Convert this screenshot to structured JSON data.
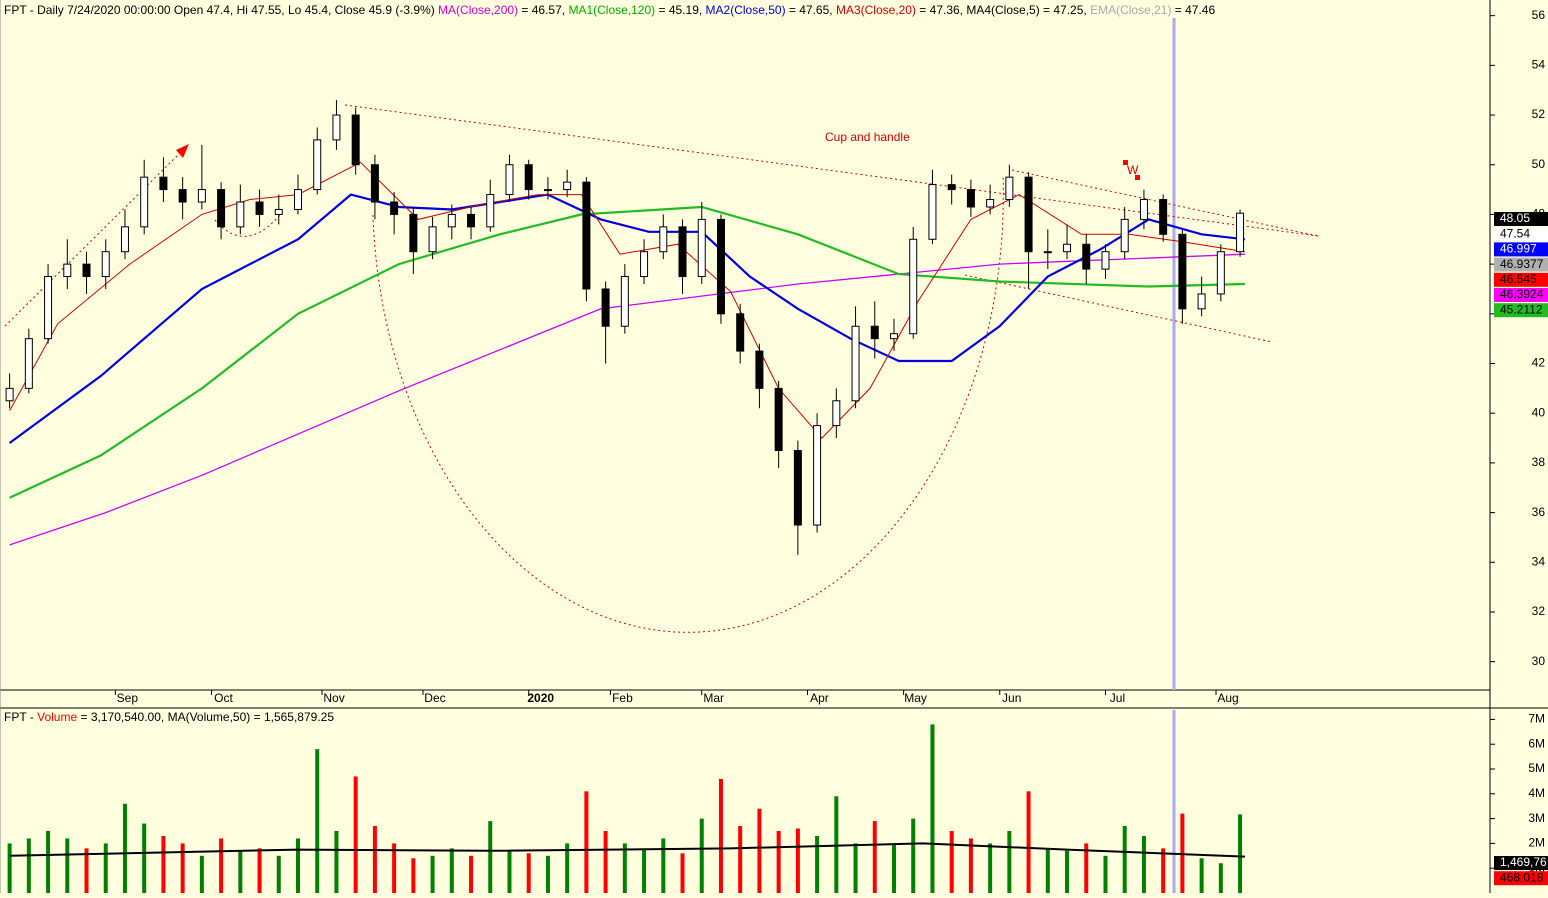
{
  "chart_data": [
    {
      "type": "candlestick",
      "header": [
        {
          "text": "FPT - Daily 7/24/2020 00:00:00 Open 47.4, Hi 47.55, Lo 45.4, Close 45.9 (-3.9%) ",
          "color": "#000000"
        },
        {
          "text": "MA(Close,200)",
          "color": "#cc00cc"
        },
        {
          "text": " = 46.57, ",
          "color": "#000000"
        },
        {
          "text": "MA1(Close,120)",
          "color": "#00aa00"
        },
        {
          "text": " = 45.19, ",
          "color": "#000000"
        },
        {
          "text": "MA2(Close,50)",
          "color": "#0000cc"
        },
        {
          "text": " = 47.65, ",
          "color": "#000000"
        },
        {
          "text": "MA3(Close,20)",
          "color": "#cc0000"
        },
        {
          "text": " = 47.36, ",
          "color": "#000000"
        },
        {
          "text": "MA4(Close,5) = 47.25, ",
          "color": "#000000"
        },
        {
          "text": "EMA(Close,21)",
          "color": "#a8a8a8"
        },
        {
          "text": " = 47.46",
          "color": "#000000"
        }
      ],
      "annotations": [
        {
          "text": "Cup and handle",
          "color": "#cc0000"
        },
        {
          "text": "W",
          "color": "#cc0000"
        }
      ],
      "xlim": [
        -2,
        308
      ],
      "xticks": [
        {
          "value": 22,
          "label": "Sep"
        },
        {
          "value": 42,
          "label": "Oct"
        },
        {
          "value": 65,
          "label": "Nov"
        },
        {
          "value": 86,
          "label": "Dec"
        },
        {
          "value": 108,
          "label": "2020",
          "bold": true
        },
        {
          "value": 125,
          "label": "Feb"
        },
        {
          "value": 144,
          "label": "Mar"
        },
        {
          "value": 166,
          "label": "Apr"
        },
        {
          "value": 186,
          "label": "May"
        },
        {
          "value": 206,
          "label": "Jun"
        },
        {
          "value": 228,
          "label": "Jul"
        },
        {
          "value": 251,
          "label": "Aug"
        }
      ],
      "ylim": [
        28.86,
        56.63
      ],
      "yticks": [
        30,
        32,
        34,
        36,
        38,
        40,
        42,
        44,
        46,
        48,
        50,
        52,
        54,
        56
      ],
      "x": [
        0,
        4,
        8,
        12,
        16,
        20,
        24,
        28,
        32,
        36,
        40,
        44,
        48,
        52,
        56,
        60,
        64,
        68,
        72,
        76,
        80,
        84,
        88,
        92,
        96,
        100,
        104,
        108,
        112,
        116,
        120,
        124,
        128,
        132,
        136,
        140,
        144,
        148,
        152,
        156,
        160,
        164,
        168,
        172,
        176,
        180,
        184,
        188,
        192,
        196,
        200,
        204,
        208,
        212,
        216,
        220,
        224,
        228,
        232,
        236,
        240,
        244,
        248,
        252,
        256
      ],
      "open": [
        40.5,
        41.0,
        43.0,
        45.5,
        46.0,
        45.5,
        46.5,
        47.5,
        49.5,
        49.0,
        48.5,
        49.0,
        47.5,
        48.5,
        48.0,
        48.2,
        49.0,
        51.0,
        52.0,
        50.0,
        48.5,
        48.0,
        46.5,
        47.5,
        48.0,
        47.5,
        48.8,
        50.0,
        49.0,
        49.0,
        49.3,
        45.0,
        43.5,
        45.5,
        46.5,
        47.5,
        45.5,
        47.8,
        44.0,
        42.5,
        41.0,
        38.5,
        35.5,
        39.5,
        40.5,
        43.5,
        43.0,
        43.2,
        47.0,
        49.2,
        49.0,
        48.3,
        48.6,
        49.5,
        46.5,
        46.5,
        46.8,
        45.8,
        46.5,
        47.8,
        48.6,
        47.2,
        44.2,
        44.8,
        46.5
      ],
      "high": [
        41.6,
        43.4,
        46.0,
        47.0,
        46.5,
        47.0,
        48.2,
        50.2,
        50.3,
        49.5,
        50.8,
        49.3,
        49.2,
        49.0,
        48.8,
        49.6,
        51.5,
        52.6,
        52.3,
        50.4,
        48.9,
        48.3,
        47.9,
        48.4,
        48.3,
        49.4,
        50.4,
        50.2,
        49.5,
        49.8,
        49.5,
        45.3,
        46.0,
        47.0,
        48.0,
        47.8,
        48.5,
        48.0,
        44.4,
        42.8,
        41.3,
        38.9,
        40.0,
        41.0,
        44.3,
        44.5,
        43.8,
        47.5,
        49.8,
        49.6,
        49.4,
        49.2,
        50.0,
        49.7,
        47.4,
        47.6,
        47.2,
        46.8,
        48.3,
        49.0,
        48.8,
        47.4,
        45.5,
        46.8,
        48.2
      ],
      "low": [
        40.2,
        40.8,
        42.8,
        45.0,
        44.8,
        45.0,
        46.2,
        47.2,
        48.5,
        47.8,
        48.2,
        47.0,
        47.2,
        47.5,
        47.6,
        48.0,
        48.8,
        50.6,
        49.6,
        47.8,
        47.2,
        45.6,
        46.2,
        47.0,
        47.0,
        47.3,
        48.5,
        48.6,
        48.6,
        48.7,
        44.5,
        42.0,
        43.2,
        45.2,
        46.2,
        44.8,
        45.2,
        43.6,
        42.0,
        40.2,
        37.8,
        34.3,
        35.2,
        39.0,
        40.2,
        42.2,
        42.5,
        43.0,
        46.8,
        48.4,
        47.9,
        48.0,
        48.3,
        45.0,
        45.8,
        46.2,
        45.2,
        45.4,
        46.2,
        47.4,
        46.9,
        43.6,
        43.9,
        44.5,
        46.3
      ],
      "close": [
        41.0,
        43.0,
        45.5,
        46.0,
        45.5,
        46.5,
        47.5,
        49.5,
        49.0,
        48.5,
        49.0,
        47.5,
        48.5,
        48.0,
        48.2,
        49.0,
        51.0,
        52.0,
        50.0,
        48.5,
        48.0,
        46.5,
        47.5,
        48.0,
        47.5,
        48.8,
        50.0,
        49.0,
        49.0,
        49.3,
        45.0,
        43.5,
        45.5,
        46.5,
        47.5,
        45.5,
        47.8,
        44.0,
        42.5,
        41.0,
        38.5,
        35.5,
        39.5,
        40.5,
        43.5,
        43.0,
        43.2,
        47.0,
        49.2,
        49.0,
        48.3,
        48.6,
        49.5,
        46.5,
        46.5,
        46.8,
        45.8,
        46.5,
        47.8,
        48.6,
        47.2,
        44.2,
        44.8,
        46.5,
        48.05
      ],
      "series": [
        {
          "color": "#cc00ff",
          "width": 1.3,
          "x": [
            0,
            20,
            40,
            81,
            123,
            164,
            206,
            257
          ],
          "values": [
            34.7,
            36.0,
            37.5,
            40.9,
            44.2,
            45.2,
            46.0,
            46.4
          ]
        },
        {
          "color": "#22bb22",
          "width": 2.2,
          "x": [
            0,
            19,
            40,
            60,
            81,
            102,
            119,
            144,
            164,
            185,
            206,
            237,
            257
          ],
          "values": [
            36.6,
            38.3,
            41.0,
            44.0,
            46.0,
            47.2,
            48.0,
            48.3,
            47.2,
            45.6,
            45.3,
            45.1,
            45.2
          ]
        },
        {
          "color": "#0000dd",
          "width": 2.2,
          "x": [
            0,
            19,
            40,
            60,
            71,
            81,
            92,
            102,
            112,
            123,
            133,
            144,
            154,
            164,
            175,
            185,
            196,
            206,
            216,
            227,
            237,
            248,
            257
          ],
          "values": [
            38.8,
            41.5,
            45.0,
            47.0,
            48.8,
            48.3,
            48.2,
            48.5,
            48.8,
            47.8,
            47.3,
            47.3,
            45.5,
            44.2,
            43.0,
            42.1,
            42.1,
            43.5,
            45.5,
            46.6,
            47.8,
            47.2,
            47.0
          ]
        },
        {
          "color": "#cc0000",
          "width": 1,
          "x": [
            0,
            10,
            25,
            40,
            50,
            60,
            73,
            85,
            98,
            110,
            119,
            127,
            139,
            150,
            160,
            169,
            179,
            189,
            200,
            210,
            223,
            233,
            244,
            257
          ],
          "values": [
            40.1,
            43.6,
            46.0,
            48.0,
            48.6,
            48.8,
            50.1,
            47.8,
            48.4,
            48.8,
            48.8,
            46.4,
            46.8,
            44.9,
            41.0,
            39.0,
            41.0,
            44.5,
            47.8,
            48.8,
            47.2,
            47.2,
            46.9,
            46.5
          ]
        }
      ],
      "last_values": [
        {
          "value": 48.05,
          "bg": "#000000",
          "fg": "#ffffff"
        },
        {
          "value": 47.54,
          "bg": "#ffffff",
          "fg": "#000000"
        },
        {
          "value": 46.997,
          "bg": "#0000ff",
          "fg": "#ffffff"
        },
        {
          "value": 46.9377,
          "bg": "#b0b0b0",
          "fg": "#000000"
        },
        {
          "value": 46.545,
          "bg": "#ff0000",
          "fg": "#000000"
        },
        {
          "value": 46.3924,
          "bg": "#ff00ff",
          "fg": "#000000"
        },
        {
          "value": 45.2112,
          "bg": "#22bb22",
          "fg": "#000000"
        }
      ]
    },
    {
      "type": "bar",
      "header": [
        {
          "text": "FPT - ",
          "color": "#000000"
        },
        {
          "text": "Volume",
          "color": "#ff0000"
        },
        {
          "text": " = 3,170,540.00, MA(Volume,50) = 1,565,879.25",
          "color": "#000000"
        }
      ],
      "up_color": "#008000",
      "down_color": "#ff0000",
      "xlim": [
        -2,
        308
      ],
      "ylim": [
        0,
        7380000
      ],
      "yticks": [
        {
          "value": 1000000,
          "label": "1M"
        },
        {
          "value": 2000000,
          "label": "2M"
        },
        {
          "value": 3000000,
          "label": "3M"
        },
        {
          "value": 4000000,
          "label": "4M"
        },
        {
          "value": 5000000,
          "label": "5M"
        },
        {
          "value": 6000000,
          "label": "6M"
        },
        {
          "value": 7000000,
          "label": "7M"
        }
      ],
      "x": [
        0,
        4,
        8,
        12,
        16,
        20,
        24,
        28,
        32,
        36,
        40,
        44,
        48,
        52,
        56,
        60,
        64,
        68,
        72,
        76,
        80,
        84,
        88,
        92,
        96,
        100,
        104,
        108,
        112,
        116,
        120,
        124,
        128,
        132,
        136,
        140,
        144,
        148,
        152,
        156,
        160,
        164,
        168,
        172,
        176,
        180,
        184,
        188,
        192,
        196,
        200,
        204,
        208,
        212,
        216,
        220,
        224,
        228,
        232,
        236,
        240,
        244,
        248,
        252,
        256
      ],
      "values": [
        2000000,
        2200000,
        2500000,
        2200000,
        1800000,
        2000000,
        3600000,
        2800000,
        2300000,
        2000000,
        1500000,
        2200000,
        1700000,
        1800000,
        1500000,
        2200000,
        5800000,
        2500000,
        4700000,
        2700000,
        2000000,
        1400000,
        1500000,
        1800000,
        1500000,
        2900000,
        1700000,
        1600000,
        1500000,
        2000000,
        4100000,
        2500000,
        2000000,
        1800000,
        2200000,
        1600000,
        3000000,
        4600000,
        2700000,
        3400000,
        2500000,
        2600000,
        2300000,
        3900000,
        2000000,
        2900000,
        2000000,
        3000000,
        6800000,
        2500000,
        2200000,
        2000000,
        2500000,
        4100000,
        1800000,
        1700000,
        2000000,
        1500000,
        2700000,
        2300000,
        1800000,
        3200000,
        1400000,
        1200000,
        3170540
      ],
      "series": [
        {
          "color": "#000000",
          "width": 2,
          "x": [
            0,
            60,
            100,
            150,
            190,
            220,
            257
          ],
          "values": [
            1500000,
            1750000,
            1700000,
            1800000,
            2000000,
            1750000,
            1469760
          ]
        }
      ],
      "last_values": [
        {
          "value": 1469760,
          "label": "1,469,76",
          "bg": "#000000",
          "fg": "#ffffff"
        },
        {
          "value": 468018,
          "label": "468,018",
          "bg": "#ff0000",
          "fg": "#000000"
        }
      ]
    }
  ]
}
